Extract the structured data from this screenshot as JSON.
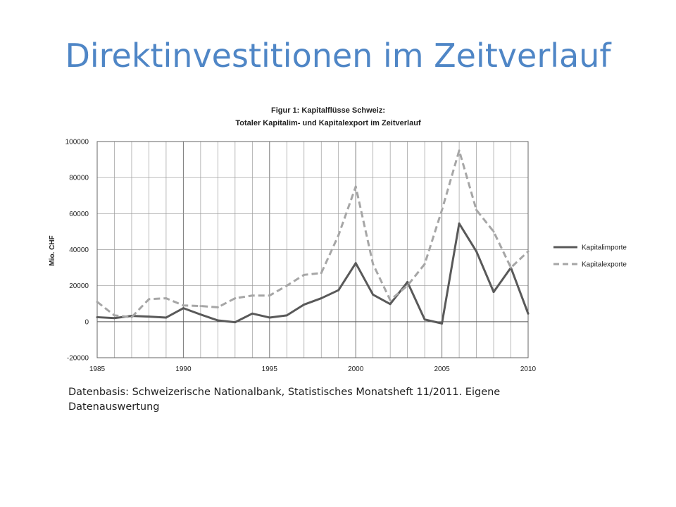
{
  "slide": {
    "title": "Direktinvestitionen im Zeitverlauf",
    "caption": "Datenbasis: Schweizerische Nationalbank, Statistisches Monatsheft 11/2011. Eigene Datenauswertung"
  },
  "colors": {
    "title": "#4f86c6",
    "importe": "#595959",
    "exporte": "#a6a6a6",
    "grid": "#9a9a9a"
  },
  "chart_data": {
    "type": "line",
    "title": "Figur 1: Kapitalflüsse Schweiz:",
    "subtitle": "Totaler Kapitalim- und Kapitalexport im Zeitverlauf",
    "xlabel": "",
    "ylabel": "Mio. CHF",
    "xlim": [
      1985,
      2010
    ],
    "ylim": [
      -20000,
      100000
    ],
    "xticks": [
      "1985",
      "1990",
      "1995",
      "2000",
      "2005",
      "2010"
    ],
    "yticks": [
      "100000",
      "80000",
      "60000",
      "40000",
      "20000",
      "0",
      "-20000"
    ],
    "grid": true,
    "legend_position": "right",
    "x": [
      1985,
      1986,
      1987,
      1988,
      1989,
      1990,
      1991,
      1992,
      1993,
      1994,
      1995,
      1996,
      1997,
      1998,
      1999,
      2000,
      2001,
      2002,
      2003,
      2004,
      2005,
      2006,
      2007,
      2008,
      2009,
      2010
    ],
    "series": [
      {
        "name": "Kapitalimporte",
        "style": "solid",
        "values": [
          2500,
          2000,
          3200,
          2800,
          2300,
          7500,
          4000,
          700,
          -300,
          4500,
          2300,
          3500,
          9500,
          13000,
          17500,
          32500,
          15000,
          9800,
          22000,
          1200,
          -1000,
          54500,
          39000,
          16500,
          30000,
          4500
        ]
      },
      {
        "name": "Kapitalexporte",
        "style": "dashed",
        "values": [
          11000,
          3500,
          2500,
          12500,
          13000,
          9000,
          8700,
          8000,
          13000,
          14500,
          14500,
          20000,
          26000,
          27000,
          48000,
          75000,
          32000,
          12000,
          20000,
          32000,
          62000,
          95000,
          62000,
          50000,
          30000,
          39000
        ]
      }
    ]
  }
}
